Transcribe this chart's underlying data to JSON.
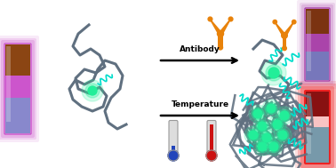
{
  "bg_color": "#ffffff",
  "antibody_color": "#E8820A",
  "polymer_color": "#607080",
  "fluorescent_color": "#00DDCC",
  "green_dot_color": "#22EE99",
  "text_antibody": "Antibody",
  "text_temperature": "Temperature",
  "text_fontsize": 6.5,
  "text_fontweight": "bold",
  "left_tube_outer": "#CC55CC",
  "left_tube_top": "#7B1A7B",
  "left_tube_mid": "#BBAAFF",
  "left_tube_bot": "#9955AA",
  "right_top_outer": "#AA44AA",
  "right_top_top": "#7B1A7B",
  "right_top_bot": "#AAAAEE",
  "right_bot_outer": "#EE2222",
  "right_bot_top": "#881111",
  "right_bot_bot": "#FF88AA"
}
